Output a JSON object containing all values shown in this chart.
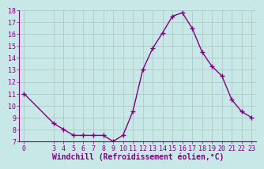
{
  "x": [
    0,
    3,
    4,
    5,
    6,
    7,
    8,
    9,
    10,
    11,
    12,
    13,
    14,
    15,
    16,
    17,
    18,
    19,
    20,
    21,
    22,
    23
  ],
  "y": [
    11,
    8.5,
    8.0,
    7.5,
    7.5,
    7.5,
    7.5,
    7.0,
    7.5,
    9.5,
    13.0,
    14.8,
    16.1,
    17.5,
    17.8,
    16.5,
    14.5,
    13.3,
    12.5,
    10.5,
    9.5,
    9.0
  ],
  "line_color": "#800080",
  "marker": "+",
  "marker_size": 4,
  "bg_color": "#c8e8e8",
  "xlabel": "Windchill (Refroidissement éolien,°C)",
  "xlabel_color": "#800080",
  "tick_color": "#800080",
  "ylim": [
    7,
    18
  ],
  "xlim": [
    -0.5,
    23.5
  ],
  "yticks": [
    7,
    8,
    9,
    10,
    11,
    12,
    13,
    14,
    15,
    16,
    17,
    18
  ],
  "xticks": [
    0,
    3,
    4,
    5,
    6,
    7,
    8,
    9,
    10,
    11,
    12,
    13,
    14,
    15,
    16,
    17,
    18,
    19,
    20,
    21,
    22,
    23
  ],
  "grid_color": "#b0c8c8",
  "axis_color": "#800080",
  "font_size": 6,
  "xlabel_fontsize": 7,
  "line_width": 1.0,
  "marker_linewidth": 1.0
}
